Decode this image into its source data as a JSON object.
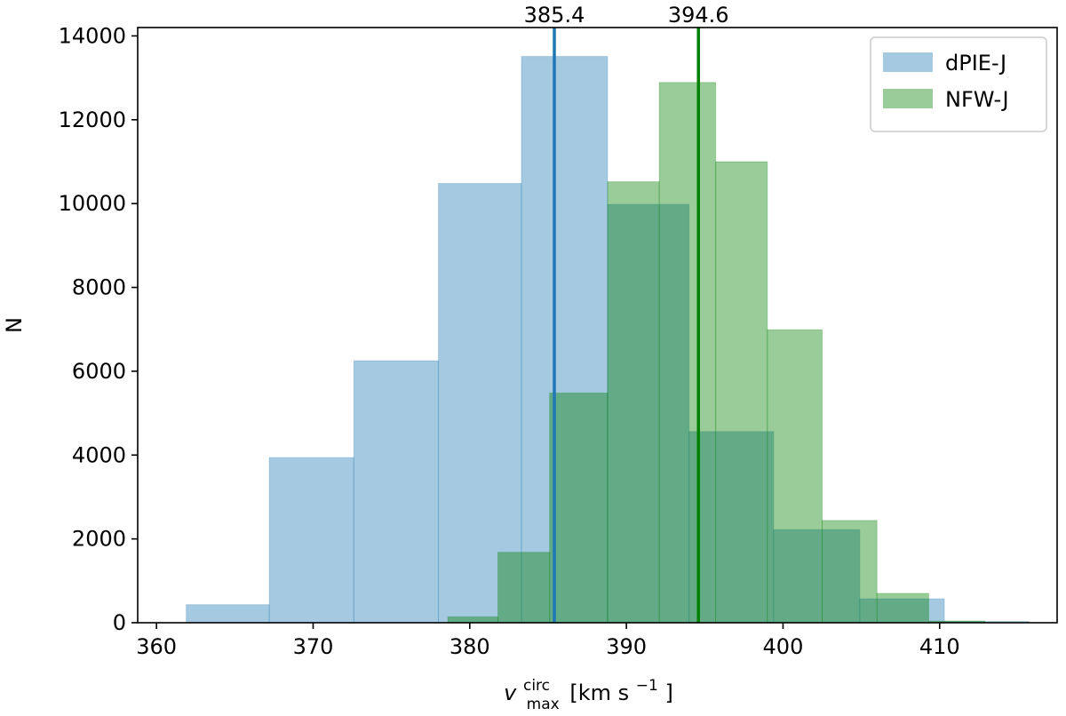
{
  "chart_data": {
    "type": "bar",
    "title": "",
    "xlabel_main": "v",
    "xlabel_sup": "circ",
    "xlabel_sub": "max",
    "xlabel_unit_pre": "[km s",
    "xlabel_unit_exp": "−1",
    "xlabel_unit_post": "]",
    "ylabel": "N",
    "xlim": [
      358.8,
      417.5
    ],
    "ylim": [
      0,
      14200
    ],
    "xticks": [
      360,
      370,
      380,
      390,
      400,
      410
    ],
    "yticks": [
      0,
      2000,
      4000,
      6000,
      8000,
      10000,
      12000,
      14000
    ],
    "legend_position": "upper right",
    "series": [
      {
        "name": "dPIE-J",
        "color": "#1f77b4",
        "fill_color": "#9ec5e1",
        "mean": 385.4,
        "mean_label": "385.4",
        "bins": [
          {
            "x0": 361.9,
            "x1": 367.2,
            "value": 430
          },
          {
            "x0": 367.2,
            "x1": 372.6,
            "value": 3940
          },
          {
            "x0": 372.6,
            "x1": 378.0,
            "value": 6250
          },
          {
            "x0": 378.0,
            "x1": 383.3,
            "value": 10480
          },
          {
            "x0": 383.3,
            "x1": 388.8,
            "value": 13510
          },
          {
            "x0": 388.8,
            "x1": 394.0,
            "value": 9980
          },
          {
            "x0": 394.0,
            "x1": 399.4,
            "value": 4560
          },
          {
            "x0": 399.4,
            "x1": 404.9,
            "value": 2220
          },
          {
            "x0": 404.9,
            "x1": 410.3,
            "value": 570
          },
          {
            "x0": 410.3,
            "x1": 415.7,
            "value": 30
          }
        ]
      },
      {
        "name": "NFW-J",
        "color": "#008000",
        "fill_color": "#9dcf90",
        "mean": 394.6,
        "mean_label": "394.6",
        "bins": [
          {
            "x0": 378.6,
            "x1": 381.8,
            "value": 140
          },
          {
            "x0": 381.8,
            "x1": 385.1,
            "value": 1680
          },
          {
            "x0": 385.1,
            "x1": 388.8,
            "value": 5480
          },
          {
            "x0": 388.8,
            "x1": 392.1,
            "value": 10520
          },
          {
            "x0": 392.1,
            "x1": 395.7,
            "value": 12890
          },
          {
            "x0": 395.7,
            "x1": 399.0,
            "value": 11000
          },
          {
            "x0": 399.0,
            "x1": 402.5,
            "value": 6990
          },
          {
            "x0": 402.5,
            "x1": 406.0,
            "value": 2440
          },
          {
            "x0": 406.0,
            "x1": 409.3,
            "value": 700
          },
          {
            "x0": 409.3,
            "x1": 412.9,
            "value": 40
          }
        ]
      }
    ]
  }
}
